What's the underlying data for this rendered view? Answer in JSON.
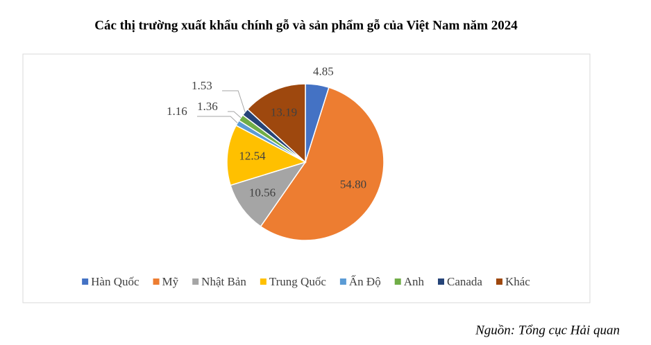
{
  "chart_data": {
    "type": "pie",
    "title": "Các thị trường xuất khẩu chính gỗ và sản phẩm gỗ của Việt Nam năm 2024",
    "categories": [
      "Hàn Quốc",
      "Mỹ",
      "Nhật Bản",
      "Trung Quốc",
      "Ấn Độ",
      "Anh",
      "Canada",
      "Khác"
    ],
    "values": [
      4.85,
      54.8,
      10.56,
      12.54,
      1.16,
      1.36,
      1.53,
      13.19
    ],
    "value_labels": [
      "4.85",
      "54.80",
      "10.56",
      "12.54",
      "1.16",
      "1.36",
      "1.53",
      "13.19"
    ],
    "colors": [
      "#4472c4",
      "#ed7d31",
      "#a5a5a5",
      "#ffc000",
      "#5b9bd5",
      "#70ad47",
      "#264478",
      "#9e480e"
    ],
    "legend": "bottom",
    "source": "Nguồn: Tổng cục Hải quan"
  }
}
